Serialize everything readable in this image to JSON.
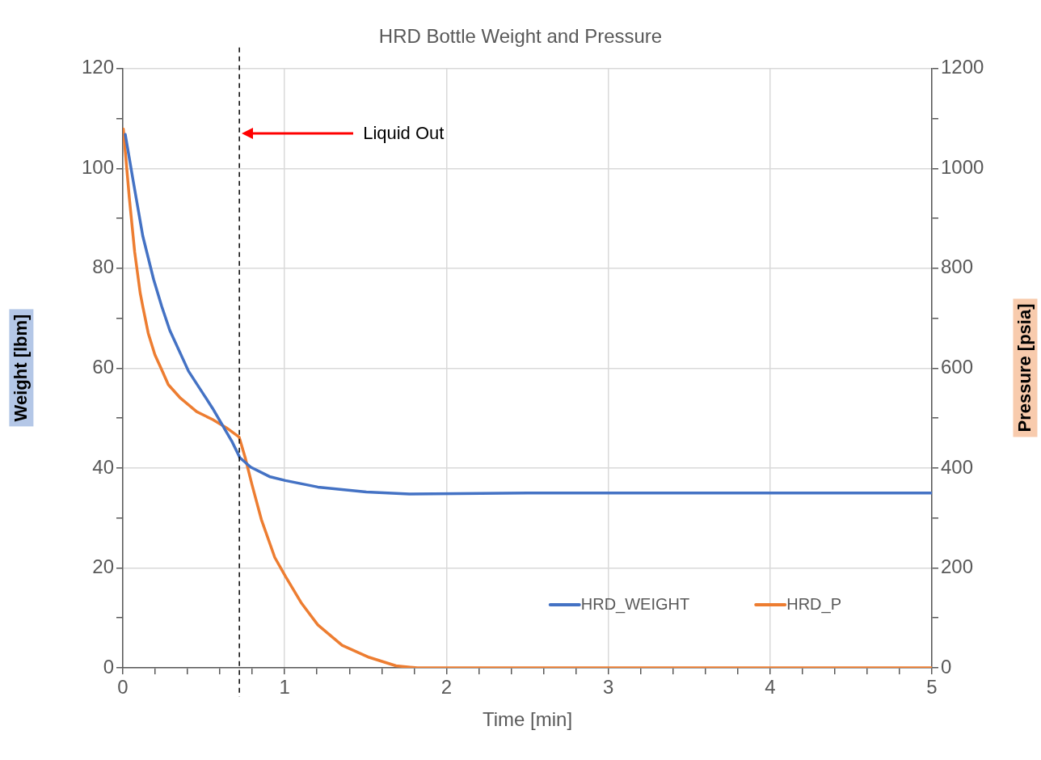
{
  "chart_data": {
    "type": "line",
    "title": "HRD Bottle Weight and Pressure",
    "xlabel": "Time [min]",
    "ylabel": "Weight [lbm]",
    "y2label": "Pressure [psia]",
    "xlim": [
      0,
      5
    ],
    "xticks": [
      0,
      {
        "value": 0.2,
        "label": null
      },
      {
        "value": 0.4,
        "label": null
      },
      {
        "value": 0.6,
        "label": null
      },
      {
        "value": 0.8,
        "label": null
      },
      1,
      {
        "value": 1.2,
        "label": null
      },
      {
        "value": 1.4,
        "label": null
      },
      {
        "value": 1.6,
        "label": null
      },
      {
        "value": 1.8,
        "label": null
      },
      2,
      {
        "value": 2.2,
        "label": null
      },
      {
        "value": 2.4,
        "label": null
      },
      {
        "value": 2.6,
        "label": null
      },
      {
        "value": 2.8,
        "label": null
      },
      3,
      {
        "value": 3.2,
        "label": null
      },
      {
        "value": 3.4,
        "label": null
      },
      {
        "value": 3.6,
        "label": null
      },
      {
        "value": 3.8,
        "label": null
      },
      4,
      {
        "value": 4.2,
        "label": null
      },
      {
        "value": 4.4,
        "label": null
      },
      {
        "value": 4.6,
        "label": null
      },
      {
        "value": 4.8,
        "label": null
      },
      5
    ],
    "ylim": [
      0,
      120
    ],
    "yticks": [
      0,
      {
        "value": 10,
        "label": null
      },
      20,
      {
        "value": 30,
        "label": null
      },
      40,
      {
        "value": 50,
        "label": null
      },
      60,
      {
        "value": 70,
        "label": null
      },
      80,
      {
        "value": 90,
        "label": null
      },
      100,
      {
        "value": 110,
        "label": null
      },
      120
    ],
    "y2lim": [
      0,
      1200
    ],
    "y2ticks": [
      0,
      {
        "value": 100,
        "label": null
      },
      200,
      {
        "value": 300,
        "label": null
      },
      400,
      {
        "value": 500,
        "label": null
      },
      600,
      {
        "value": 700,
        "label": null
      },
      800,
      {
        "value": 900,
        "label": null
      },
      1000,
      {
        "value": 1100,
        "label": null
      },
      1200
    ],
    "grid": true,
    "legend": "bottom right",
    "marker": "none",
    "line_style": "solid",
    "series": [
      {
        "name": "HRD_WEIGHT",
        "color": "#4472c4",
        "x": [
          0.015,
          0.065,
          0.123,
          0.19,
          0.24,
          0.29,
          0.406,
          0.556,
          0.673,
          0.723,
          0.79,
          0.906,
          1.005,
          1.205,
          1.505,
          1.77,
          2.5,
          3.5,
          4.5,
          5
        ],
        "values": [
          106.8,
          97.3,
          86.5,
          77.8,
          72.4,
          67.6,
          59.4,
          51.9,
          45.4,
          42.1,
          40.2,
          38.3,
          37.5,
          36.2,
          35.2,
          34.8,
          35,
          35,
          35,
          35
        ]
      },
      {
        "name": "HRD_P",
        "color": "#ed7d31",
        "axis": "y2",
        "x": [
          0.003,
          0.04,
          0.073,
          0.107,
          0.123,
          0.157,
          0.198,
          0.24,
          0.281,
          0.356,
          0.456,
          0.556,
          0.639,
          0.719,
          0.756,
          0.798,
          0.856,
          0.939,
          1.005,
          1.105,
          1.205,
          1.355,
          1.522,
          1.688,
          1.82,
          2.5,
          3.5,
          4.5,
          5
        ],
        "values": [
          1079,
          941,
          833,
          751,
          724,
          670,
          627,
          597,
          567,
          540,
          513,
          497,
          481,
          462,
          421,
          367,
          297,
          221,
          183,
          129,
          86,
          45,
          21,
          4,
          0,
          0,
          0,
          0,
          0
        ]
      }
    ],
    "ref_lines": [
      {
        "axis": "x",
        "value": 0.72,
        "color": "#000000",
        "line_style": "dashed"
      }
    ],
    "annotations": [
      "Liquid Out"
    ]
  }
}
